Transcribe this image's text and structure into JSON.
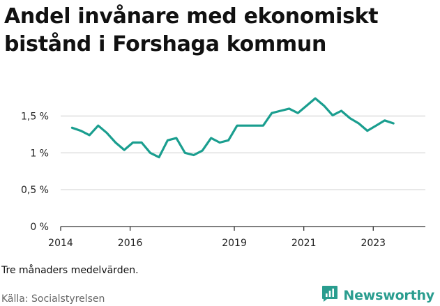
{
  "title": "Andel invånare med ekonomiskt bistånd i Forshaga kommun",
  "footnote": "Tre månaders medelvärden.",
  "source": "Källa: Socialstyrelsen",
  "brand": {
    "name": "Newsworthy",
    "icon": "newsworthy-logo-icon",
    "color": "#2a9d8f"
  },
  "colors": {
    "line": "#1a9e8f",
    "grid": "#d9d9d9",
    "axis": "#333333"
  },
  "chart_data": {
    "type": "line",
    "title": "Andel invånare med ekonomiskt bistånd i Forshaga kommun",
    "xlabel": "",
    "ylabel": "",
    "ylim": [
      0,
      1.75
    ],
    "xlim": [
      2014,
      2024.5
    ],
    "grid": true,
    "y_ticks": [
      {
        "value": 0,
        "label": "0 %"
      },
      {
        "value": 0.5,
        "label": "0,5 %"
      },
      {
        "value": 1,
        "label": "1 %"
      },
      {
        "value": 1.5,
        "label": "1,5 %"
      }
    ],
    "x_ticks": [
      {
        "value": 2014,
        "label": "2014"
      },
      {
        "value": 2016,
        "label": "2016"
      },
      {
        "value": 2019,
        "label": "2019"
      },
      {
        "value": 2021,
        "label": "2021"
      },
      {
        "value": 2023,
        "label": "2023"
      }
    ],
    "series": [
      {
        "x": [
          2014.33,
          2014.58,
          2014.83,
          2015.08,
          2015.33,
          2015.58,
          2015.83,
          2016.08,
          2016.33,
          2016.58,
          2016.83,
          2017.08,
          2017.33,
          2017.58,
          2017.83,
          2018.08,
          2018.33,
          2018.58,
          2018.83,
          2019.08,
          2019.33,
          2019.58,
          2019.83,
          2020.08,
          2020.33,
          2020.58,
          2020.83,
          2021.08,
          2021.33,
          2021.58,
          2021.83,
          2022.08,
          2022.33,
          2022.58,
          2022.83,
          2023.08,
          2023.33,
          2023.58
        ],
        "values": [
          1.34,
          1.3,
          1.24,
          1.37,
          1.27,
          1.14,
          1.04,
          1.14,
          1.14,
          1.0,
          0.94,
          1.17,
          1.2,
          1.0,
          0.97,
          1.03,
          1.2,
          1.14,
          1.17,
          1.37,
          1.37,
          1.37,
          1.37,
          1.54,
          1.57,
          1.6,
          1.54,
          1.64,
          1.74,
          1.64,
          1.51,
          1.57,
          1.47,
          1.4,
          1.3,
          1.37,
          1.44,
          1.4
        ]
      }
    ]
  }
}
